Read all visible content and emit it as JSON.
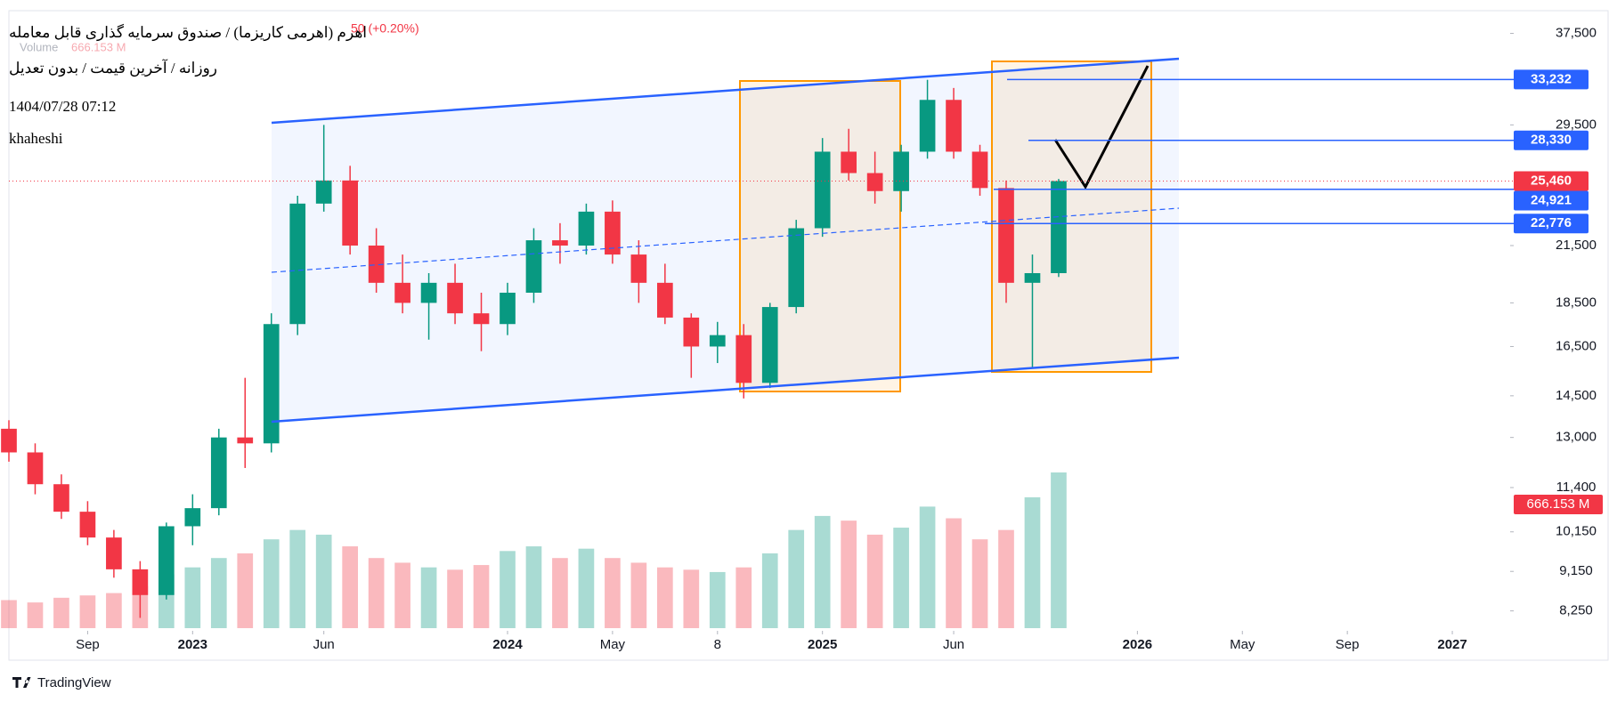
{
  "chart_data": {
    "type": "candlestick",
    "title": "اهرم (اهرمی کاریزما) / صندوق سرمایه گذاری قابل معامله",
    "subtitle": "روزانه / آخرین قیمت / بدون تعدیل",
    "timestamp": "1404/07/28 07:12",
    "author": "khaheshi",
    "change": "50 (+0.20%)",
    "volume_title": "Volume",
    "volume_last_label": "666.153 M",
    "brand": "TradingView",
    "log_scale": true,
    "up_color": "#089981",
    "down_color": "#f23645",
    "x": [
      "2022-06",
      "2022-07",
      "2022-08",
      "2022-09",
      "2022-10",
      "2022-11",
      "2022-12",
      "2023-01",
      "2023-02",
      "2023-03",
      "2023-04",
      "2023-05",
      "2023-06",
      "2023-07",
      "2023-08",
      "2023-09",
      "2023-10",
      "2023-11",
      "2023-12",
      "2024-01",
      "2024-02",
      "2024-03",
      "2024-04",
      "2024-05",
      "2024-06",
      "2024-07",
      "2024-08",
      "2024-09",
      "2024-10",
      "2024-11",
      "2024-12",
      "2025-01",
      "2025-02",
      "2025-03",
      "2025-04",
      "2025-05",
      "2025-06",
      "2025-07",
      "2025-08",
      "2025-09",
      "2025-10"
    ],
    "open": [
      13300,
      12500,
      11500,
      10700,
      10000,
      9200,
      8600,
      10300,
      10800,
      13000,
      12800,
      17500,
      24000,
      25500,
      21500,
      19500,
      18500,
      19500,
      18000,
      17500,
      19000,
      21800,
      21500,
      23500,
      21000,
      19500,
      17800,
      16500,
      17000,
      15000,
      18300,
      22500,
      27500,
      26000,
      24800,
      27500,
      31500,
      27500,
      25000,
      19500,
      20000
    ],
    "high": [
      13600,
      12800,
      11800,
      11000,
      10200,
      9400,
      10400,
      11200,
      13300,
      15200,
      18000,
      24500,
      29500,
      26500,
      22500,
      21000,
      20000,
      20500,
      19000,
      19500,
      22500,
      22800,
      24000,
      24200,
      21800,
      20500,
      18000,
      17600,
      17500,
      18500,
      23000,
      28500,
      29200,
      27500,
      28000,
      33200,
      32500,
      28000,
      25500,
      21000,
      25600
    ],
    "low": [
      12200,
      11200,
      10500,
      9800,
      9000,
      8100,
      8500,
      9800,
      10600,
      12000,
      12500,
      17000,
      23500,
      21000,
      19000,
      18000,
      16800,
      17500,
      16300,
      17000,
      18500,
      20500,
      21000,
      20500,
      18500,
      17500,
      15200,
      15800,
      14400,
      14800,
      18000,
      22000,
      25500,
      24000,
      23500,
      27000,
      27000,
      24500,
      18500,
      15600,
      19800
    ],
    "close": [
      12500,
      11500,
      10700,
      10000,
      9200,
      8600,
      10300,
      10800,
      13000,
      12800,
      17500,
      24000,
      25500,
      21500,
      19500,
      18500,
      19500,
      18000,
      17500,
      19000,
      21800,
      21500,
      23500,
      21000,
      19500,
      17800,
      16500,
      17000,
      15000,
      18300,
      22500,
      27500,
      26000,
      24800,
      27500,
      31500,
      27500,
      25000,
      19500,
      20000,
      25460
    ],
    "volume": [
      120,
      110,
      130,
      140,
      150,
      180,
      230,
      260,
      300,
      320,
      380,
      420,
      400,
      350,
      300,
      280,
      260,
      250,
      270,
      330,
      350,
      300,
      340,
      300,
      280,
      260,
      250,
      240,
      260,
      320,
      420,
      480,
      460,
      400,
      430,
      520,
      470,
      380,
      420,
      560,
      666.153
    ],
    "xlim": [
      "2022-06",
      "2027-03"
    ],
    "xticks": [
      {
        "value": "2022-09",
        "label": "Sep"
      },
      {
        "value": "2023-01",
        "label": "2023"
      },
      {
        "value": "2023-06",
        "label": "Jun"
      },
      {
        "value": "2024-01",
        "label": "2024"
      },
      {
        "value": "2024-05",
        "label": "May"
      },
      {
        "value": "2024-09",
        "label": "8"
      },
      {
        "value": "2025-01",
        "label": "2025"
      },
      {
        "value": "2025-06",
        "label": "Jun"
      },
      {
        "value": "2026-01",
        "label": "2026"
      },
      {
        "value": "2026-05",
        "label": "May"
      },
      {
        "value": "2026-09",
        "label": "Sep"
      },
      {
        "value": "2027-01",
        "label": "2027"
      }
    ],
    "ylim": [
      7830,
      39800
    ],
    "yticks": [
      {
        "value": 37500,
        "label": "37,500"
      },
      {
        "value": 29500,
        "label": "29,500"
      },
      {
        "value": 21500,
        "label": "21,500"
      },
      {
        "value": 18500,
        "label": "18,500"
      },
      {
        "value": 16500,
        "label": "16,500"
      },
      {
        "value": 14500,
        "label": "14,500"
      },
      {
        "value": 13000,
        "label": "13,000"
      },
      {
        "value": 11400,
        "label": "11,400"
      },
      {
        "value": 10150,
        "label": "10,150"
      },
      {
        "value": 9150,
        "label": "9,150"
      },
      {
        "value": 8250,
        "label": "8,250"
      }
    ],
    "price_lines": [
      {
        "value": 33232,
        "label": "33,232"
      },
      {
        "value": 28330,
        "label": "28,330"
      },
      {
        "value": 24921,
        "label": "24,921"
      },
      {
        "value": 22776,
        "label": "22,776"
      }
    ],
    "price_line_color": "#2962ff",
    "last_price": {
      "value": 25460,
      "label": "25,460"
    }
  }
}
